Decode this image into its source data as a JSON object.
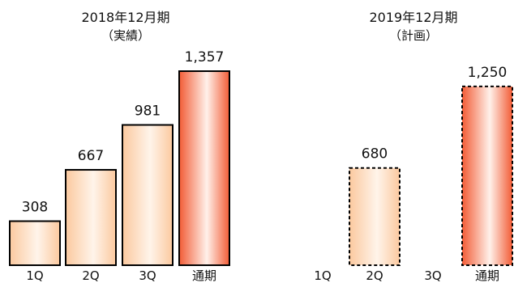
{
  "chart_data": [
    {
      "type": "bar",
      "title": "2018年12月期",
      "subtitle": "（実績）",
      "categories": [
        "1Q",
        "2Q",
        "3Q",
        "通期"
      ],
      "values": [
        308,
        667,
        981,
        1357
      ],
      "value_labels": [
        "308",
        "667",
        "981",
        "1,357"
      ],
      "bar_styles": [
        "actual",
        "actual",
        "actual",
        "full-year"
      ],
      "ylim": [
        0,
        1357
      ]
    },
    {
      "type": "bar",
      "title": "2019年12月期",
      "subtitle": "（計画）",
      "categories": [
        "1Q",
        "2Q",
        "3Q",
        "通期"
      ],
      "values": [
        null,
        680,
        null,
        1250
      ],
      "value_labels": [
        "",
        "680",
        "",
        "1,250"
      ],
      "bar_styles": [
        "none",
        "plan",
        "none",
        "plan-full-year"
      ],
      "ylim": [
        0,
        1357
      ]
    }
  ],
  "colors": {
    "quarter_gradient": [
      "#fbc99f",
      "#fff4ea"
    ],
    "full_year_gradient": [
      "#f25c36",
      "#fff1ea"
    ],
    "bar_outline": "#000000"
  }
}
